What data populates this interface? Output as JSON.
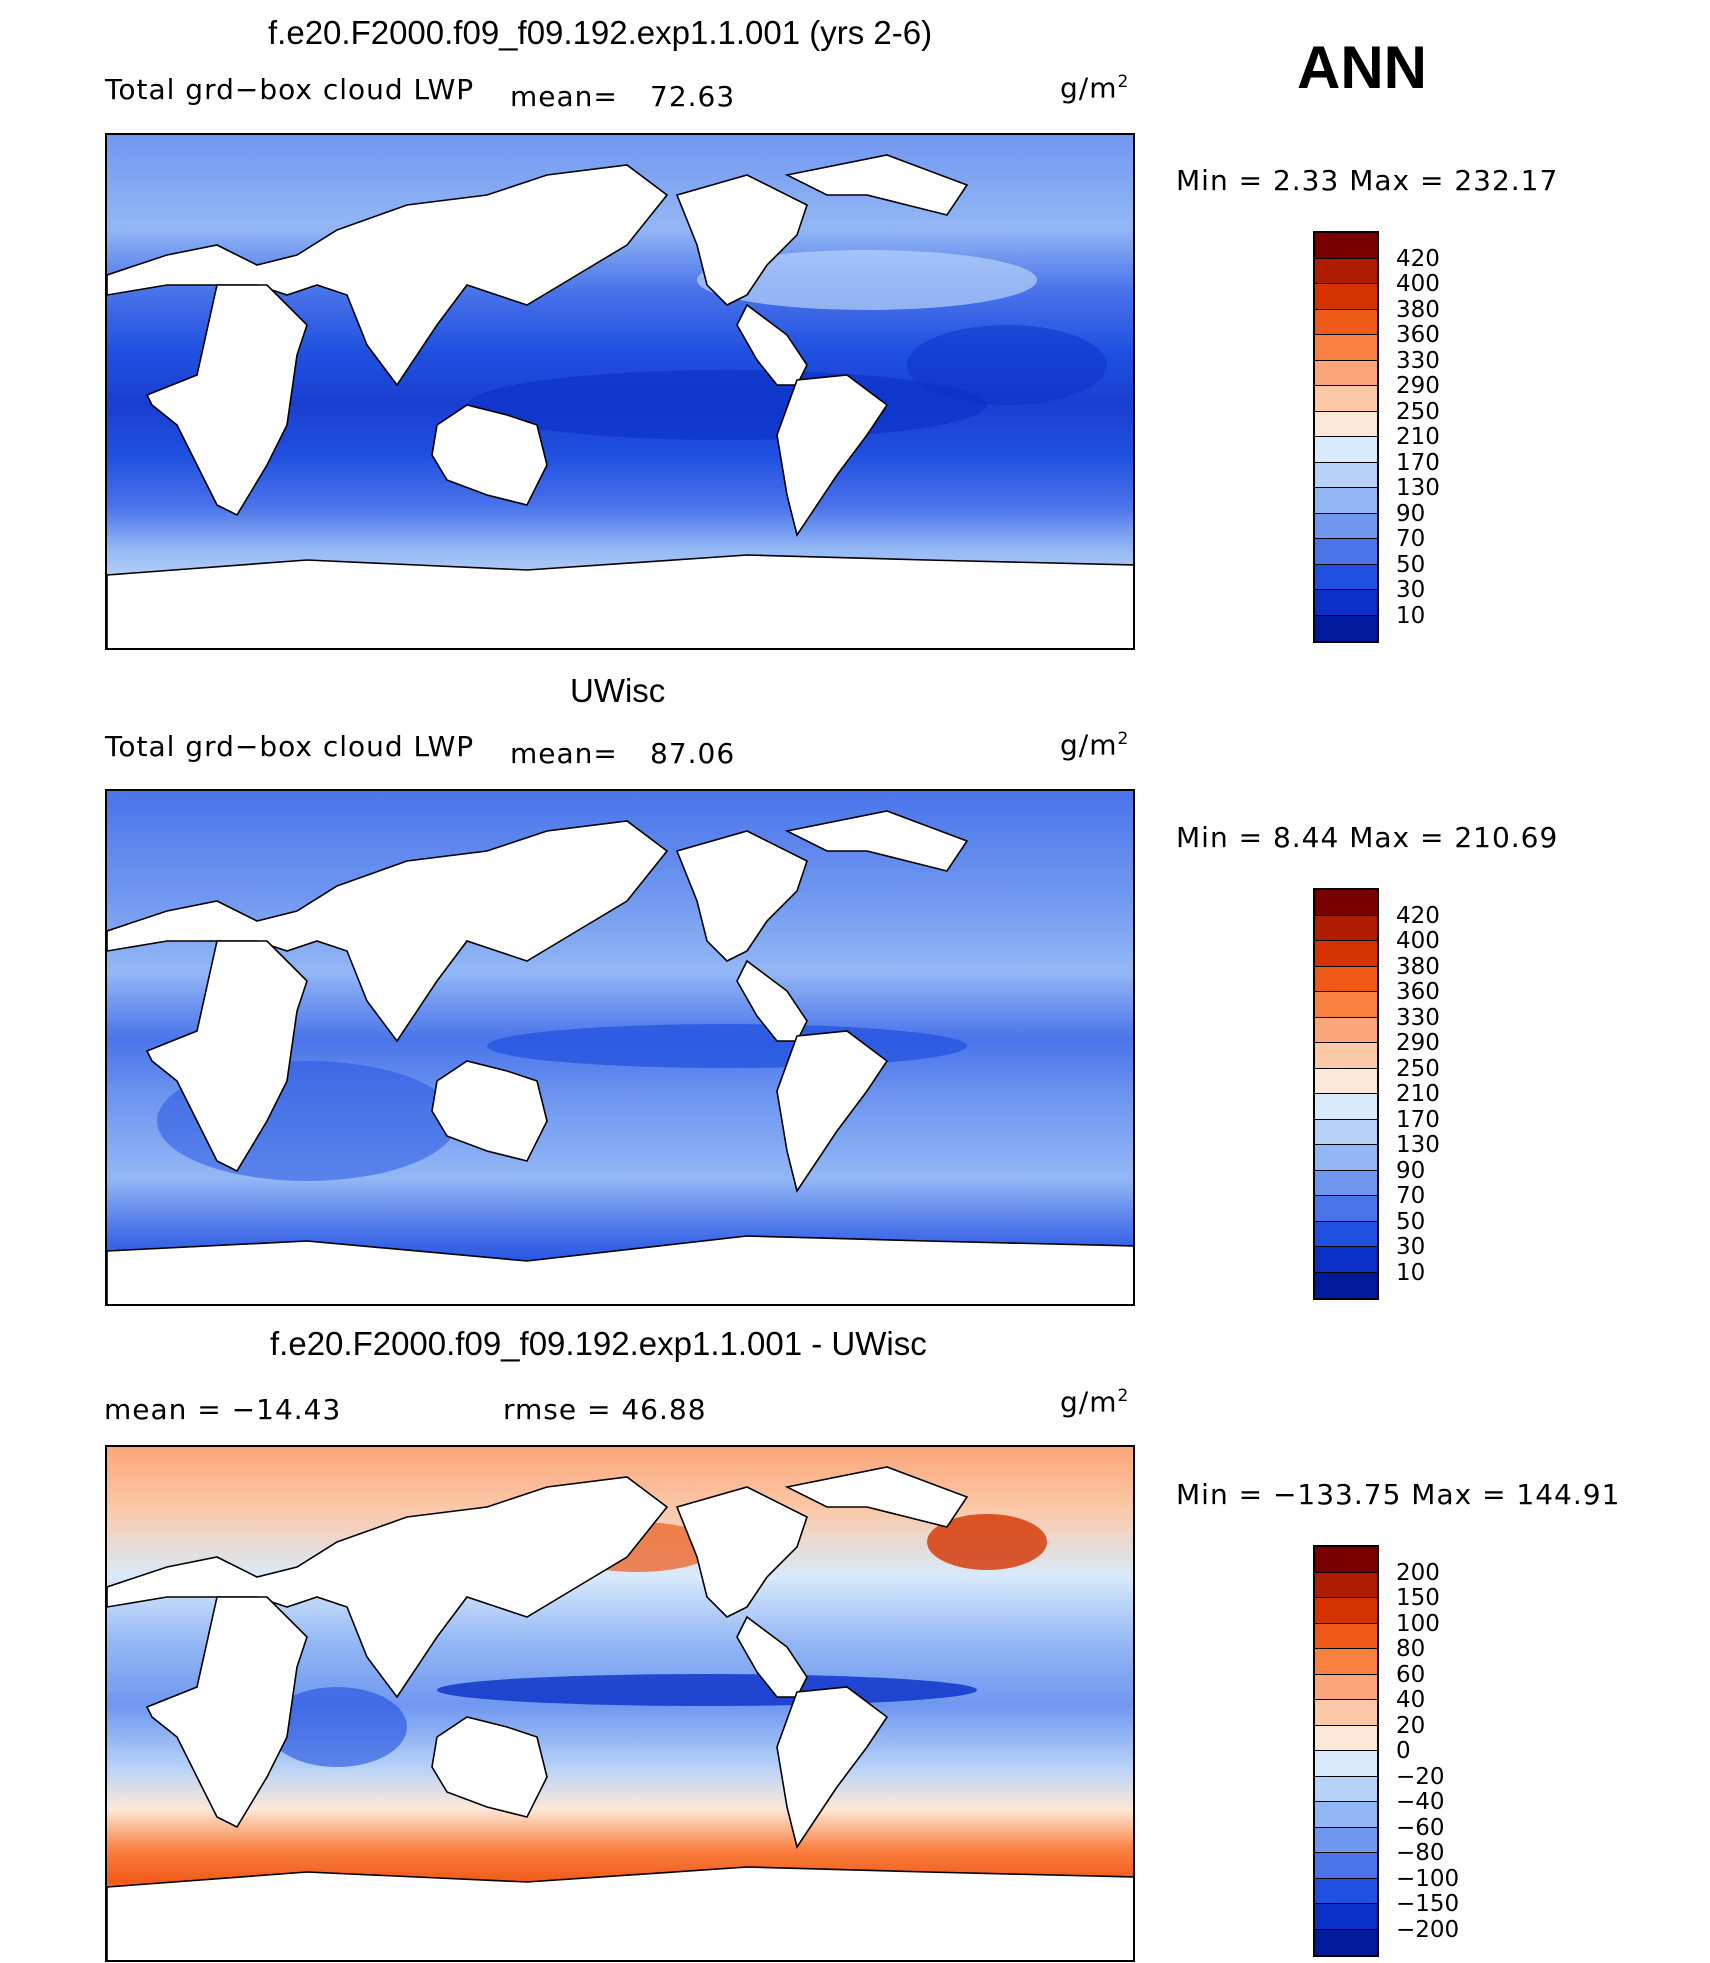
{
  "season": "ANN",
  "units": "g/m",
  "units_sup": "2",
  "panels": [
    {
      "title": "f.e20.F2000.f09_f09.192.exp1.1.001 (yrs 2-6)",
      "field": "Total grd−box cloud LWP",
      "mean_label": "mean=",
      "mean": "72.63",
      "minmax": "Min =     2.33 Max = 232.17",
      "colorbar": {
        "labels": [
          "420",
          "400",
          "380",
          "360",
          "330",
          "290",
          "250",
          "210",
          "170",
          "130",
          "90",
          "70",
          "50",
          "30",
          "10"
        ],
        "colors": [
          "#7a0000",
          "#b01c00",
          "#d43300",
          "#f05a18",
          "#fa8040",
          "#fba67a",
          "#fcc9a8",
          "#fde8d8",
          "#d8eafb",
          "#b7d2f8",
          "#93b7f5",
          "#6f97f0",
          "#4a74ea",
          "#2050e0",
          "#0a30c8",
          "#001a9c"
        ]
      }
    },
    {
      "title": "UWisc",
      "field": "Total grd−box cloud LWP",
      "mean_label": "mean=",
      "mean": "87.06",
      "minmax": "Min =     8.44 Max = 210.69",
      "colorbar": {
        "labels": [
          "420",
          "400",
          "380",
          "360",
          "330",
          "290",
          "250",
          "210",
          "170",
          "130",
          "90",
          "70",
          "50",
          "30",
          "10"
        ],
        "colors": [
          "#7a0000",
          "#b01c00",
          "#d43300",
          "#f05a18",
          "#fa8040",
          "#fba67a",
          "#fcc9a8",
          "#fde8d8",
          "#d8eafb",
          "#b7d2f8",
          "#93b7f5",
          "#6f97f0",
          "#4a74ea",
          "#2050e0",
          "#0a30c8",
          "#001a9c"
        ]
      }
    },
    {
      "title": "f.e20.F2000.f09_f09.192.exp1.1.001 - UWisc",
      "mean_text": "mean = −14.43",
      "rmse_text": "rmse =   46.88",
      "minmax": "Min = −133.75 Max = 144.91",
      "colorbar": {
        "labels": [
          "200",
          "150",
          "100",
          "80",
          "60",
          "40",
          "20",
          "0",
          "−20",
          "−40",
          "−60",
          "−80",
          "−100",
          "−150",
          "−200"
        ],
        "colors": [
          "#7a0000",
          "#b01c00",
          "#d43300",
          "#f05a18",
          "#fa8040",
          "#fba67a",
          "#fcc9a8",
          "#fde8d8",
          "#d8eafb",
          "#b7d2f8",
          "#93b7f5",
          "#6f97f0",
          "#4a74ea",
          "#2050e0",
          "#0a30c8",
          "#001a9c"
        ]
      }
    }
  ]
}
